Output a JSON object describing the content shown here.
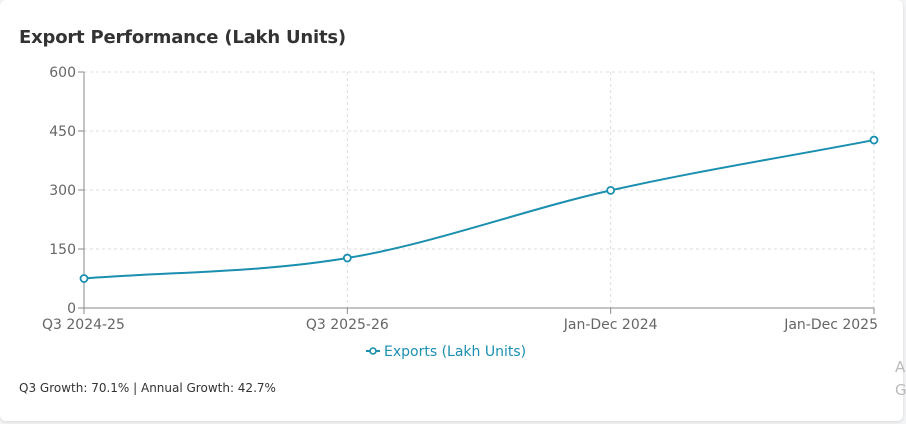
{
  "card": {
    "title": "Export Performance (Lakh Units)",
    "footer": "Q3 Growth: 70.1% | Annual Growth: 42.7%",
    "edge_fragments": [
      "A",
      "G"
    ]
  },
  "colors": {
    "series": "#1a8fb0",
    "grid": "#dddddd",
    "axis": "#888888",
    "tick_text": "#666666"
  },
  "chart_data": {
    "type": "line",
    "title": "Export Performance (Lakh Units)",
    "categories": [
      "Q3 2024-25",
      "Q3 2025-26",
      "Jan-Dec 2024",
      "Jan-Dec 2025"
    ],
    "series": [
      {
        "name": "Exports (Lakh Units)",
        "values": [
          75,
          127,
          299,
          427
        ]
      }
    ],
    "ylim": [
      0,
      600
    ],
    "yticks": [
      0,
      150,
      300,
      450,
      600
    ],
    "grid": true,
    "legend_position": "bottom",
    "xlabel": "",
    "ylabel": ""
  }
}
